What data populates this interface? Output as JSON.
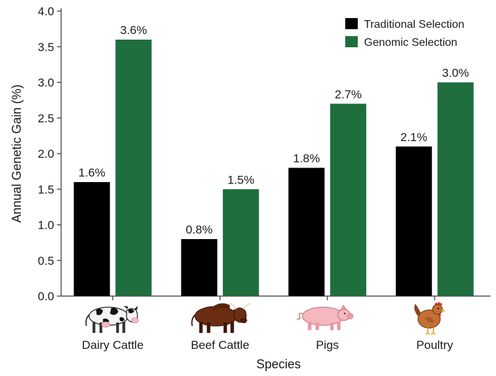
{
  "chart_data": {
    "type": "bar",
    "xlabel": "Species",
    "ylabel": "Annual Genetic Gain (%)",
    "ylim": [
      0,
      4.0
    ],
    "yticks": [
      "0.0",
      "0.5",
      "1.0",
      "1.5",
      "2.0",
      "2.5",
      "3.0",
      "3.5",
      "4.0"
    ],
    "categories": [
      "Dairy Cattle",
      "Beef Cattle",
      "Pigs",
      "Poultry"
    ],
    "category_icons": [
      "dairy-cow-icon",
      "beef-bull-icon",
      "pig-icon",
      "chicken-icon"
    ],
    "series": [
      {
        "name": "Traditional Selection",
        "color": "#000000",
        "values": [
          1.6,
          0.8,
          1.8,
          2.1
        ],
        "labels": [
          "1.6%",
          "0.8%",
          "1.8%",
          "2.1%"
        ]
      },
      {
        "name": "Genomic Selection",
        "color": "#1e6e3e",
        "values": [
          3.6,
          1.5,
          2.7,
          3.0
        ],
        "labels": [
          "3.6%",
          "1.5%",
          "2.7%",
          "3.0%"
        ]
      }
    ],
    "grid": false,
    "legend_position": "top-right"
  }
}
